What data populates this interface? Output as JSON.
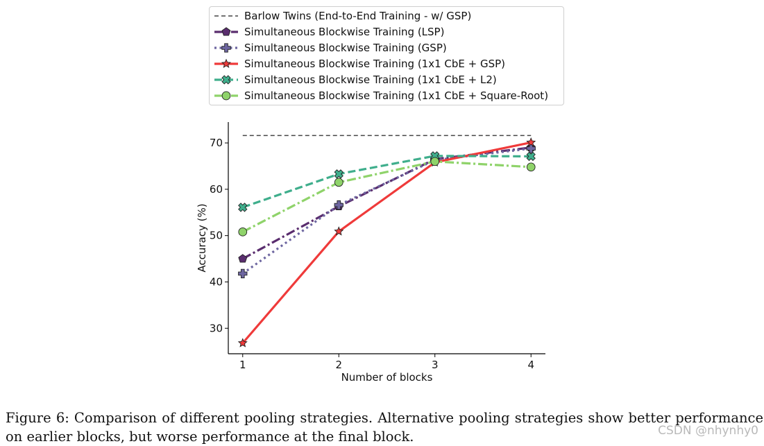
{
  "chart_data": {
    "type": "line",
    "xlabel": "Number of blocks",
    "ylabel": "Accuracy (%)",
    "x": [
      1,
      2,
      3,
      4
    ],
    "xticks": [
      "1",
      "2",
      "3",
      "4"
    ],
    "yticks": [
      "30",
      "40",
      "50",
      "60",
      "70"
    ],
    "ylim": [
      24.5,
      74.5
    ],
    "xlim": [
      0.85,
      4.15
    ],
    "grid": false,
    "legend_position": "top (above plot)",
    "series": [
      {
        "name": "Barlow Twins (End-to-End Training - w/ GSP)",
        "values": [
          71.6,
          71.6,
          71.6,
          71.6
        ],
        "color": "#444444",
        "dash": "dashed",
        "marker": "none"
      },
      {
        "name": "Simultaneous Blockwise Training (LSP)",
        "values": [
          45.0,
          56.3,
          66.5,
          69.0
        ],
        "color": "#5a2d6e",
        "dash": "dashdot",
        "marker": "pentagon"
      },
      {
        "name": "Simultaneous Blockwise Training (GSP)",
        "values": [
          41.8,
          56.6,
          66.3,
          68.8
        ],
        "color": "#6d66a0",
        "dash": "dotted",
        "marker": "plus"
      },
      {
        "name": "Simultaneous Blockwise Training (1x1 CbE + GSP)",
        "values": [
          26.8,
          50.9,
          65.8,
          70.1
        ],
        "color": "#ef3a3a",
        "dash": "solid",
        "marker": "star"
      },
      {
        "name": "Simultaneous Blockwise Training (1x1 CbE + L2)",
        "values": [
          56.1,
          63.3,
          67.2,
          67.1
        ],
        "color": "#3fae8c",
        "dash": "dashed",
        "marker": "x"
      },
      {
        "name": "Simultaneous Blockwise Training (1x1 CbE + Square-Root)",
        "values": [
          50.8,
          61.5,
          66.0,
          64.8
        ],
        "color": "#8fd36a",
        "dash": "dashdot",
        "marker": "circle"
      }
    ]
  },
  "caption": {
    "text": "Figure 6: Comparison of different pooling strategies. Alternative pooling strategies show better performance on earlier blocks, but worse performance at the final block."
  },
  "watermark": "CSDN @nhynhy0"
}
